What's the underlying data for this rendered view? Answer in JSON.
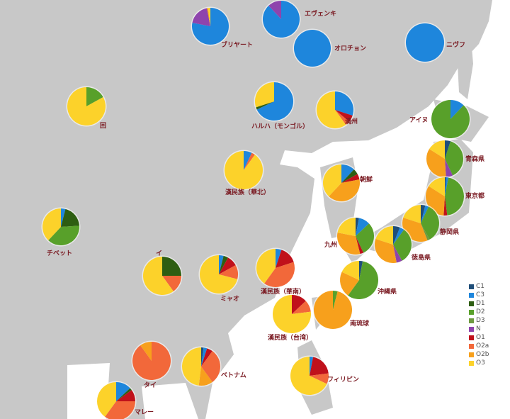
{
  "haplogroup_colors": {
    "C1": "#1f4e79",
    "C3": "#1e86dc",
    "D1": "#2e5e12",
    "D2": "#58a02a",
    "D3": "#6e9a40",
    "N": "#8e44ad",
    "O1": "#c0111b",
    "O2a": "#f2683a",
    "O2b": "#f7a01c",
    "O3": "#fcd22a"
  },
  "legend": [
    "C1",
    "C3",
    "D1",
    "D2",
    "D3",
    "N",
    "O1",
    "O2a",
    "O2b",
    "O3"
  ],
  "populations": [
    {
      "name": "ブリヤート",
      "shares": {
        "C3": 0.78,
        "N": 0.19,
        "O2b": 0.01,
        "O3": 0.02
      }
    },
    {
      "name": "エヴェンキ",
      "shares": {
        "C3": 0.88,
        "N": 0.12
      }
    },
    {
      "name": "オロチョン",
      "shares": {
        "C3": 1.0
      }
    },
    {
      "name": "ニヴフ",
      "shares": {
        "C3": 1.0
      }
    },
    {
      "name": "ハルハ（モンゴル）",
      "shares": {
        "C3": 0.68,
        "D1": 0.02,
        "O3": 0.3
      }
    },
    {
      "name": "満州",
      "shares": {
        "C3": 0.3,
        "O1": 0.06,
        "O2a": 0.04,
        "O3": 0.6
      }
    },
    {
      "name": "アイヌ",
      "shares": {
        "C3": 0.12,
        "D2": 0.88
      }
    },
    {
      "name": "回",
      "shares": {
        "D2": 0.17,
        "O3": 0.83
      }
    },
    {
      "name": "漢民族（華北）",
      "shares": {
        "C3": 0.07,
        "O2a": 0.03,
        "O3": 0.9
      }
    },
    {
      "name": "朝鮮",
      "shares": {
        "C3": 0.12,
        "D1": 0.05,
        "O1": 0.05,
        "O2b": 0.4,
        "O3": 0.38
      }
    },
    {
      "name": "青森県",
      "shares": {
        "C1": 0.05,
        "D2": 0.38,
        "N": 0.06,
        "O2b": 0.35,
        "O3": 0.16
      }
    },
    {
      "name": "東京都",
      "shares": {
        "C1": 0.01,
        "C3": 0.02,
        "D2": 0.45,
        "O1": 0.03,
        "O2b": 0.33,
        "O3": 0.16
      }
    },
    {
      "name": "静岡県",
      "shares": {
        "C1": 0.04,
        "C3": 0.03,
        "D2": 0.35,
        "D3": 0.02,
        "O2b": 0.36,
        "O3": 0.2
      }
    },
    {
      "name": "徳島県",
      "shares": {
        "C1": 0.06,
        "C3": 0.04,
        "D2": 0.32,
        "N": 0.05,
        "O2b": 0.33,
        "O3": 0.2
      }
    },
    {
      "name": "九州",
      "shares": {
        "C1": 0.03,
        "C3": 0.1,
        "D2": 0.3,
        "O1": 0.03,
        "O2b": 0.32,
        "O3": 0.22
      }
    },
    {
      "name": "沖縄県",
      "shares": {
        "C1": 0.03,
        "D2": 0.57,
        "O2b": 0.22,
        "O3": 0.18
      }
    },
    {
      "name": "南琉球",
      "shares": {
        "D2": 0.04,
        "O2b": 0.96
      }
    },
    {
      "name": "チベット",
      "shares": {
        "C3": 0.04,
        "D1": 0.2,
        "D2": 0.38,
        "O3": 0.38
      }
    },
    {
      "name": "イ",
      "shares": {
        "D1": 0.25,
        "O2a": 0.15,
        "O3": 0.6
      }
    },
    {
      "name": "ミャオ",
      "shares": {
        "C3": 0.04,
        "D1": 0.04,
        "O1": 0.09,
        "O2a": 0.12,
        "O3": 0.71
      }
    },
    {
      "name": "漢民族（華南）",
      "shares": {
        "C3": 0.05,
        "O1": 0.15,
        "O2a": 0.4,
        "O3": 0.4
      }
    },
    {
      "name": "漢民族（台湾）",
      "shares": {
        "O1": 0.13,
        "O2a": 0.1,
        "O3": 0.77
      }
    },
    {
      "name": "タイ",
      "shares": {
        "O2a": 0.9,
        "O2b": 0.1
      }
    },
    {
      "name": "ベトナム",
      "shares": {
        "C1": 0.02,
        "C3": 0.03,
        "O1": 0.05,
        "O2a": 0.3,
        "O2b": 0.12,
        "O3": 0.48
      }
    },
    {
      "name": "フィリピン",
      "shares": {
        "C3": 0.03,
        "O1": 0.2,
        "O2a": 0.09,
        "O3": 0.68
      }
    },
    {
      "name": "マレー",
      "shares": {
        "C3": 0.13,
        "D1": 0.02,
        "O1": 0.1,
        "O2a": 0.35,
        "O3": 0.4
      }
    }
  ]
}
